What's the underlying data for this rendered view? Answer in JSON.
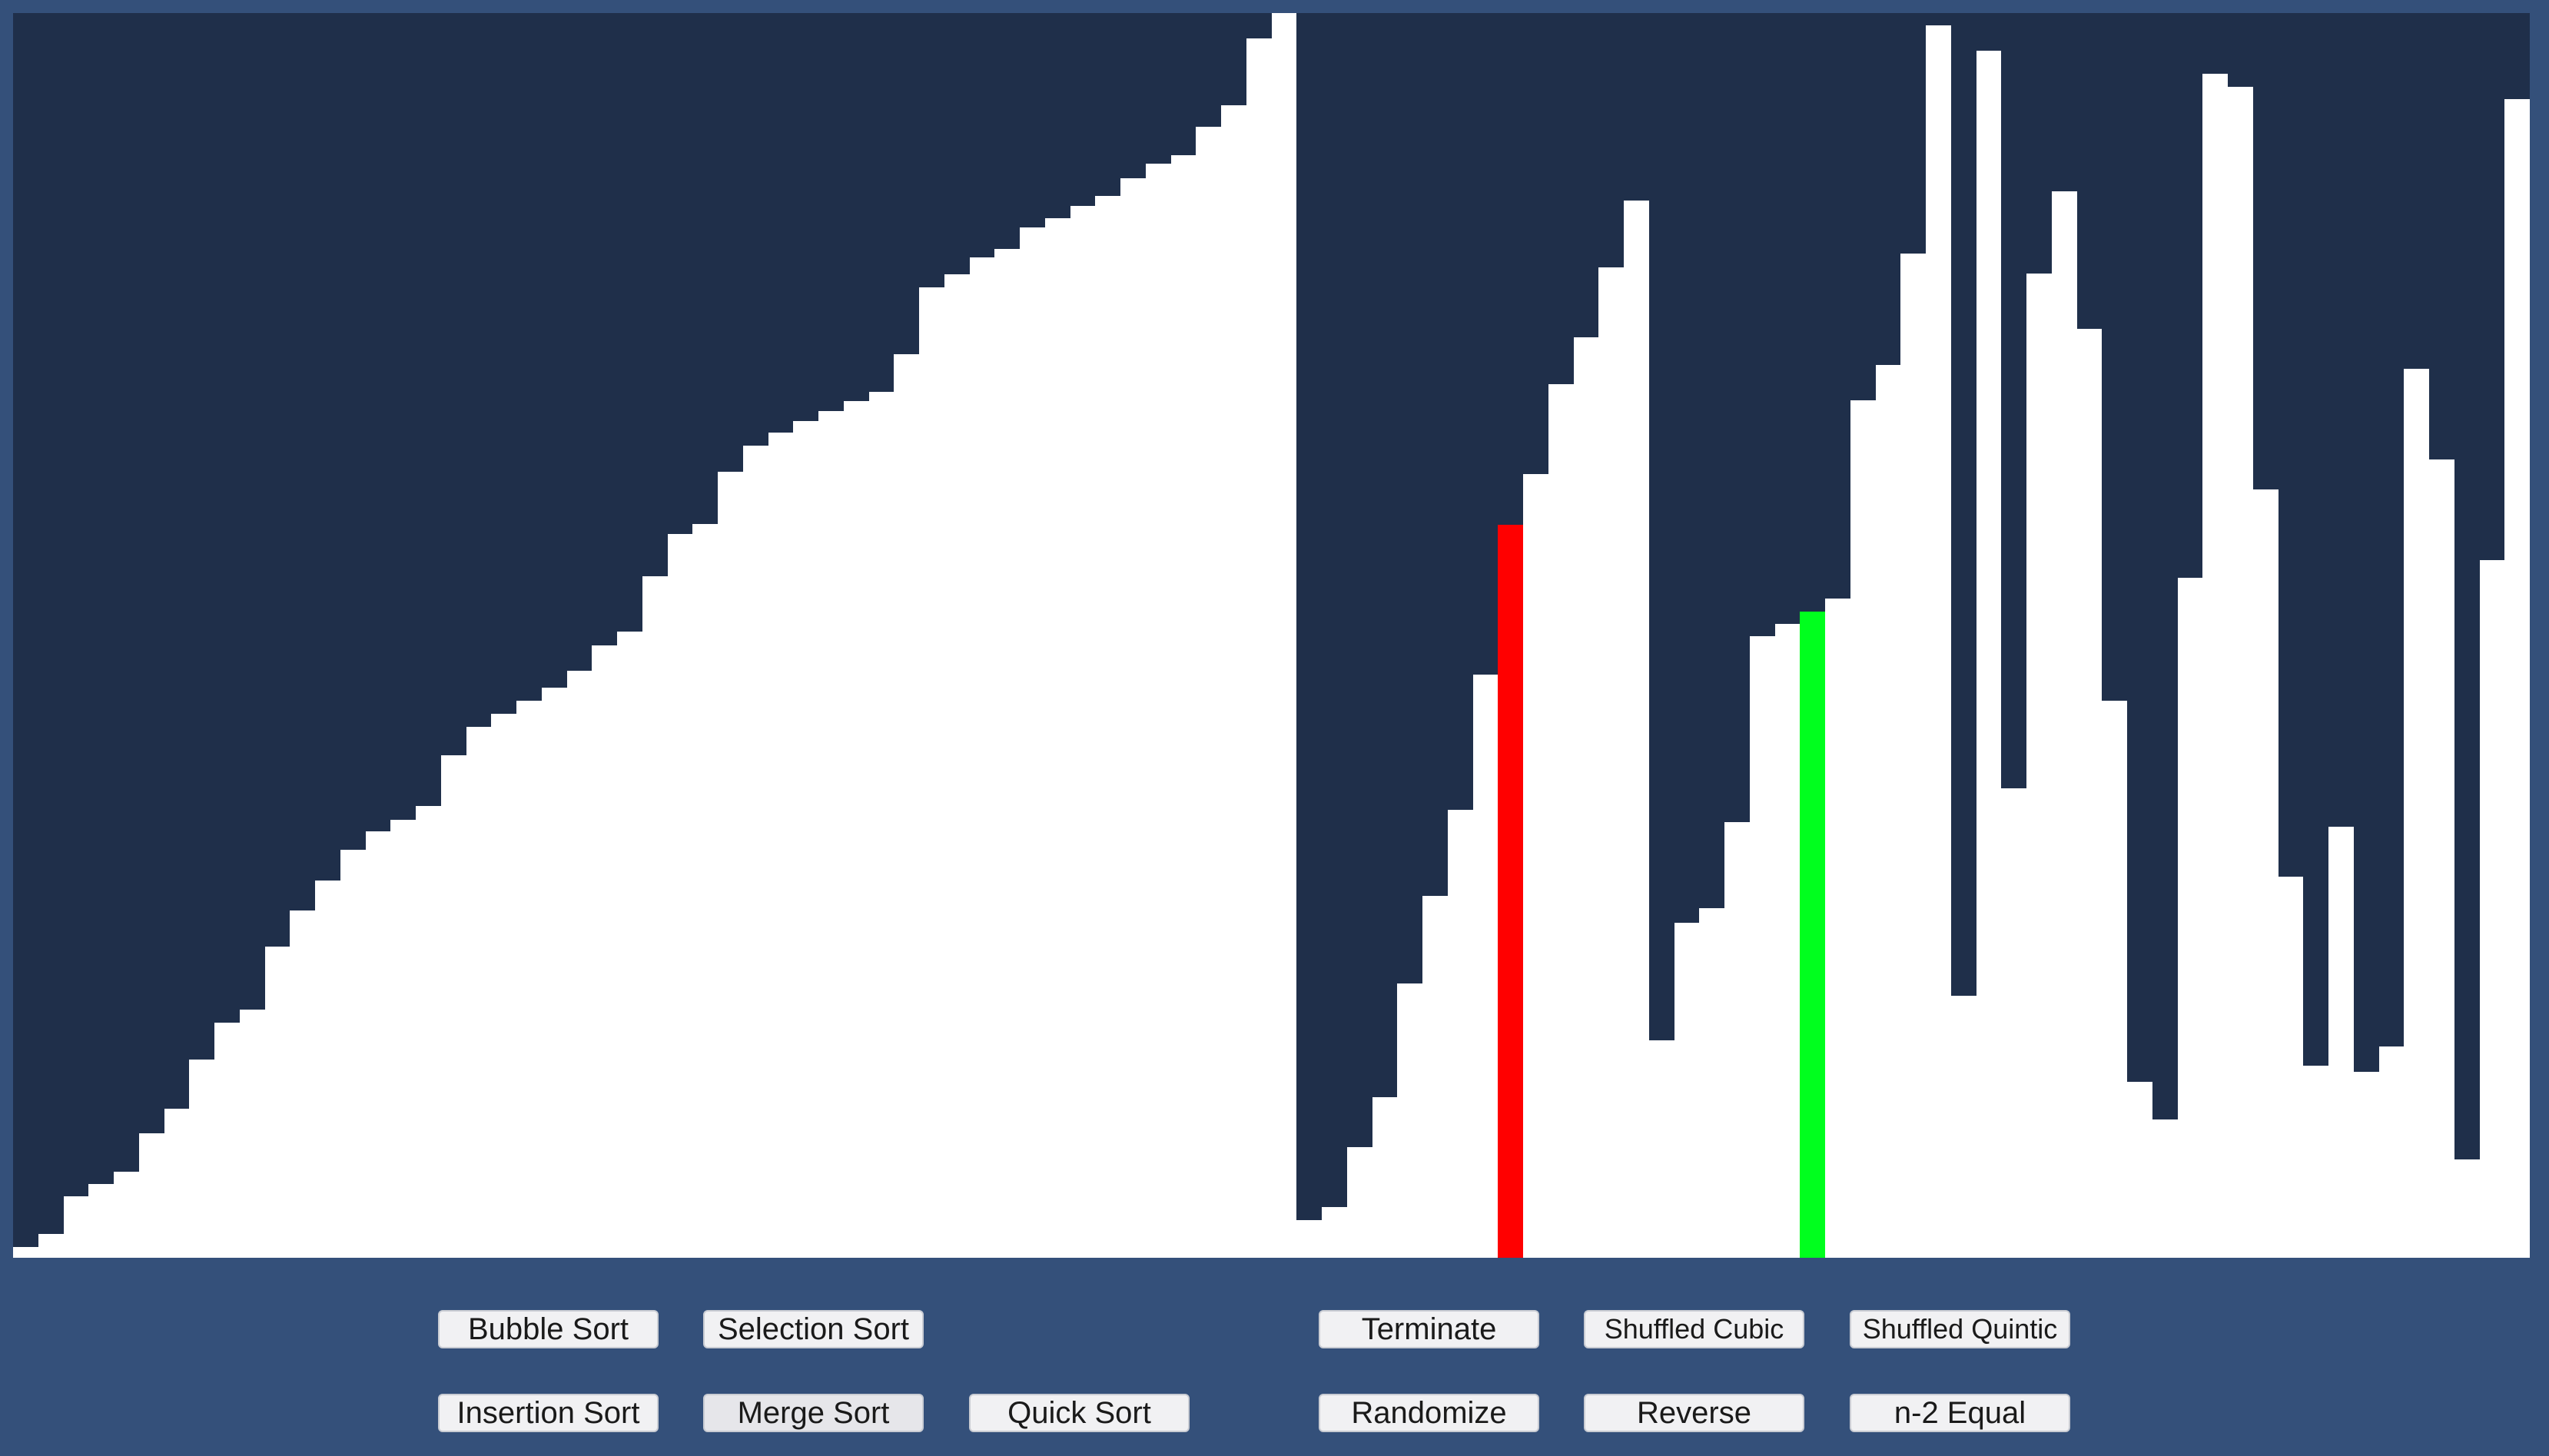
{
  "visualizer": {
    "background": "#1f2f4a",
    "bar_color": "#ffffff",
    "compare_color": "#ff0000",
    "pivot_color": "#00ff1e",
    "max_value": 1620,
    "values": [
      14,
      31,
      80,
      96,
      112,
      162,
      194,
      258,
      306,
      323,
      405,
      452,
      491,
      531,
      555,
      570,
      588,
      654,
      691,
      708,
      725,
      742,
      764,
      797,
      815,
      887,
      942,
      955,
      1023,
      1057,
      1074,
      1089,
      1102,
      1115,
      1127,
      1176,
      1263,
      1280,
      1302,
      1313,
      1341,
      1353,
      1369,
      1382,
      1405,
      1424,
      1435,
      1472,
      1500,
      1587,
      1620,
      49,
      66,
      144,
      209,
      357,
      471,
      583,
      759,
      954,
      1020,
      1137,
      1198,
      1289,
      1376,
      283,
      436,
      455,
      567,
      809,
      825,
      841,
      858,
      1116,
      1162,
      1307,
      1604,
      341,
      1571,
      611,
      1281,
      1388,
      1209,
      725,
      229,
      180,
      885,
      1541,
      1524,
      1000,
      496,
      250,
      561,
      242,
      275,
      1157,
      1039,
      128,
      908,
      1508
    ],
    "compare_index": 59,
    "pivot_index": 71
  },
  "controls": {
    "bubble_sort": "Bubble Sort",
    "selection_sort": "Selection Sort",
    "insertion_sort": "Insertion Sort",
    "merge_sort": "Merge Sort",
    "quick_sort": "Quick Sort",
    "terminate": "Terminate",
    "randomize": "Randomize",
    "shuffled_cubic": "Shuffled Cubic",
    "shuffled_quintic": "Shuffled Quintic",
    "reverse": "Reverse",
    "n2_equal": "n-2 Equal"
  }
}
